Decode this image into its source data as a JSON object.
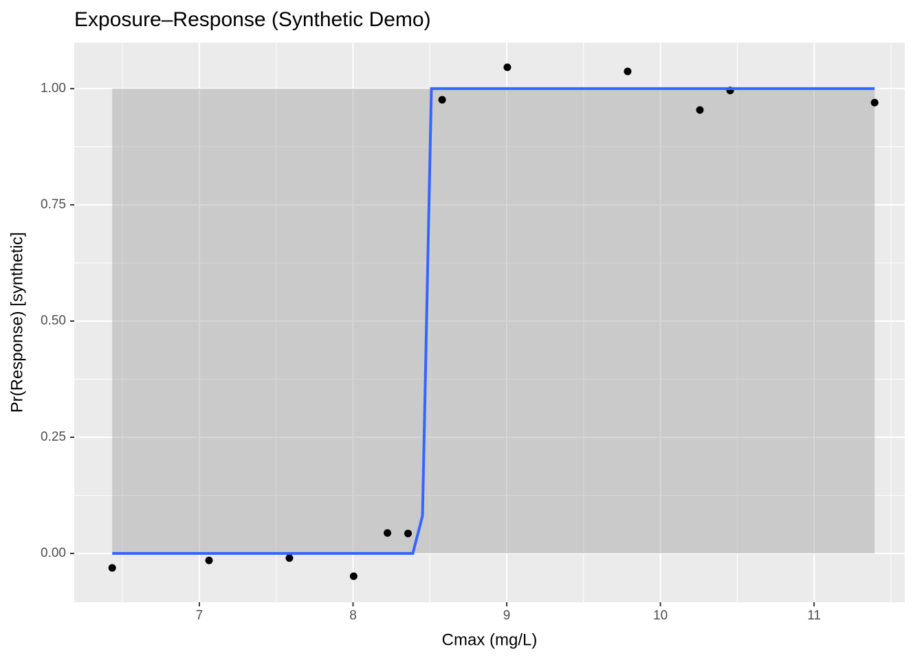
{
  "chart_data": {
    "type": "scatter",
    "title": "Exposure–Response (Synthetic Demo)",
    "x_label": "Cmax (mg/L)",
    "y_label": "Pr(Response) [synthetic]",
    "xlim": [
      6.186,
      11.59
    ],
    "ylim": [
      -0.105,
      1.099
    ],
    "xticks": [
      7,
      8,
      9,
      10,
      11
    ],
    "yticks": [
      {
        "value": 0,
        "label": "0.00"
      },
      {
        "value": 0.25,
        "label": "0.25"
      },
      {
        "value": 0.5,
        "label": "0.50"
      },
      {
        "value": 0.75,
        "label": "0.75"
      },
      {
        "value": 1,
        "label": "1.00"
      }
    ],
    "xminor": [
      6.5,
      7.5,
      8.5,
      9.5,
      10.5,
      11.5
    ],
    "yminor": [
      0.125,
      0.375,
      0.625,
      0.875
    ],
    "grid": true,
    "points": {
      "color": "#000000",
      "x": [
        6.433,
        7.063,
        7.586,
        8.004,
        8.224,
        8.358,
        8.58,
        9.004,
        9.787,
        10.257,
        10.454,
        11.394
      ],
      "y": [
        -0.031,
        -0.015,
        -0.01,
        -0.049,
        0.044,
        0.043,
        0.976,
        1.046,
        1.037,
        0.954,
        0.996,
        0.97
      ]
    },
    "fit": {
      "color": "#3366ff",
      "x": [
        6.433,
        8.389,
        8.452,
        8.51,
        11.394
      ],
      "y": [
        0,
        0,
        0.081,
        1,
        1
      ],
      "ymin": [
        0,
        0,
        0,
        0,
        0
      ],
      "ymax": [
        1,
        1,
        1,
        1,
        1
      ]
    }
  }
}
